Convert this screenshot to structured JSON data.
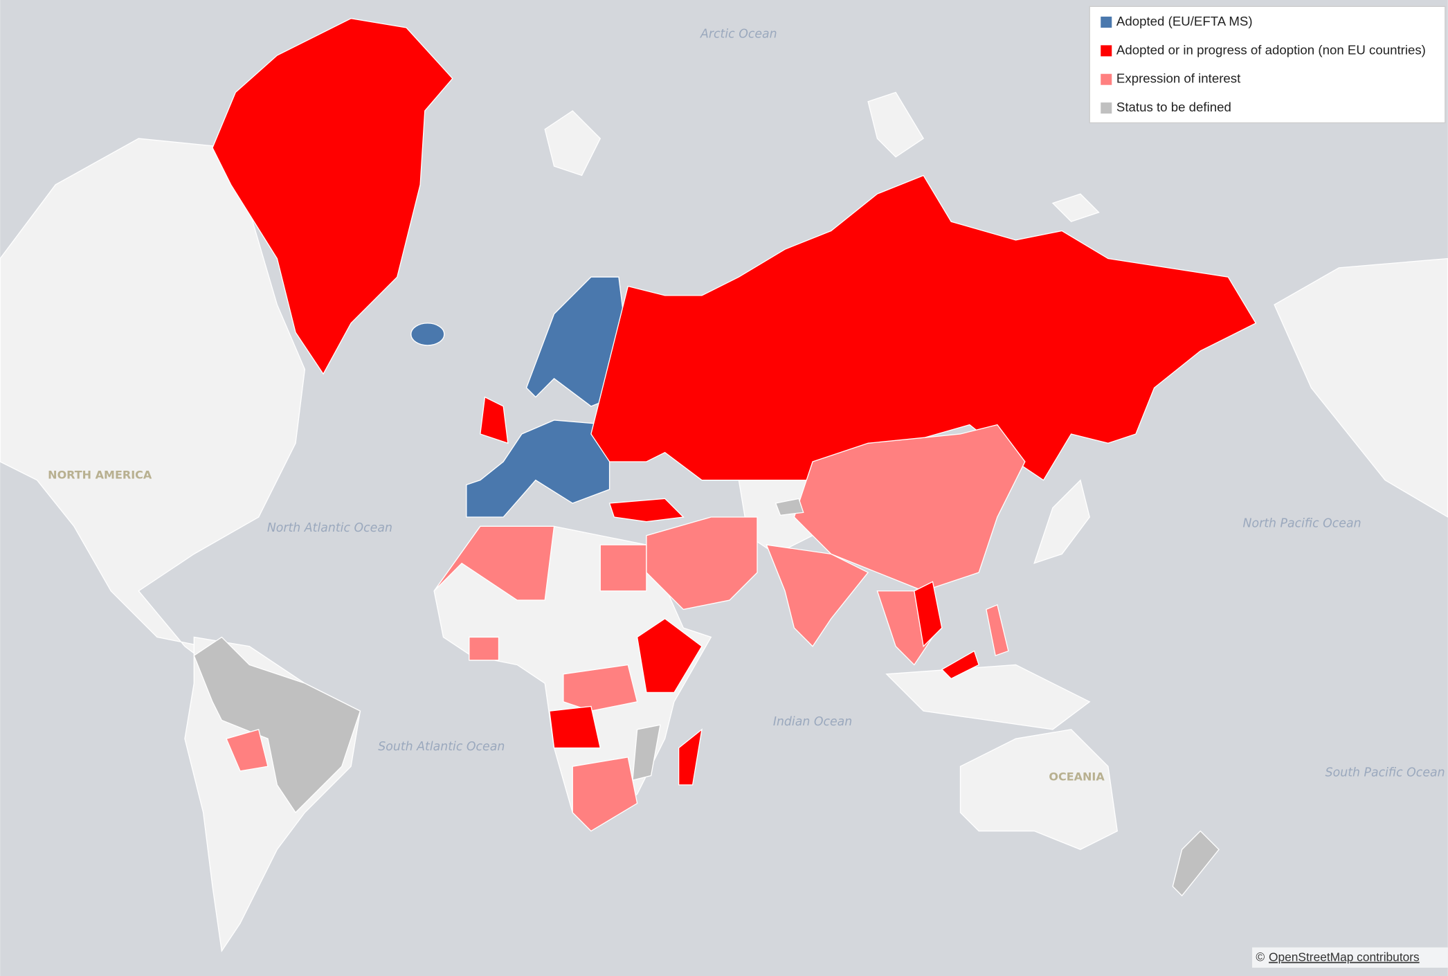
{
  "legend": {
    "items": [
      {
        "label": "Adopted (EU/EFTA MS)",
        "color": "#4a78ad"
      },
      {
        "label": "Adopted or in progress of adoption (non EU countries)",
        "color": "#ff0000"
      },
      {
        "label": "Expression of interest",
        "color": "#ff8080"
      },
      {
        "label": "Status to be defined",
        "color": "#c0c0c0"
      }
    ]
  },
  "map_labels": {
    "oceans": [
      "Arctic Ocean",
      "North Atlantic Ocean",
      "North Pacific Ocean",
      "South Atlantic Ocean",
      "Indian Ocean",
      "South Pacific Ocean"
    ],
    "continents": [
      "NORTH AMERICA",
      "OCEANIA"
    ]
  },
  "attribution": {
    "symbol": "©",
    "link": "OpenStreetMap contributors"
  }
}
